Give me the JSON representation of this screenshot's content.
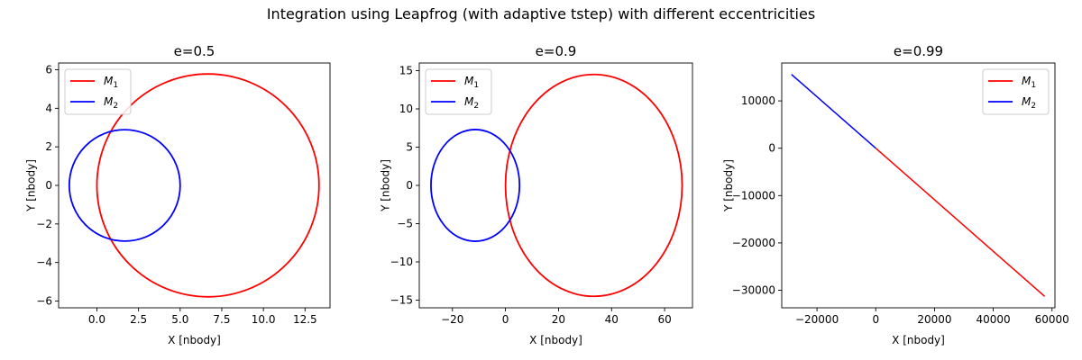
{
  "figure": {
    "title": "Integration using Leapfrog (with adaptive tstep) with different eccentricities"
  },
  "chart_data": [
    {
      "type": "line",
      "title": "e=0.5",
      "xlabel": "X [nbody]",
      "ylabel": "Y [nbody]",
      "xlim": [
        -2.3,
        14.0
      ],
      "ylim": [
        -6.35,
        6.35
      ],
      "xticks": [
        0.0,
        2.5,
        5.0,
        7.5,
        10.0,
        12.5
      ],
      "xtick_labels": [
        "0.0",
        "2.5",
        "5.0",
        "7.5",
        "10.0",
        "12.5"
      ],
      "yticks": [
        -6,
        -4,
        -2,
        0,
        2,
        4,
        6
      ],
      "ytick_labels": [
        "−6",
        "−4",
        "−2",
        "0",
        "2",
        "4",
        "6"
      ],
      "legend": {
        "position": "upper left",
        "entries": [
          "M1",
          "M2"
        ]
      },
      "series": [
        {
          "name": "M1",
          "color": "#ff0000",
          "shape": "ellipse",
          "center": [
            6.67,
            0.0
          ],
          "radii": [
            6.67,
            5.78
          ]
        },
        {
          "name": "M2",
          "color": "#0000ff",
          "shape": "ellipse",
          "center": [
            1.67,
            0.0
          ],
          "radii": [
            3.33,
            2.89
          ]
        }
      ]
    },
    {
      "type": "line",
      "title": "e=0.9",
      "xlabel": "X [nbody]",
      "ylabel": "Y [nbody]",
      "xlim": [
        -32.5,
        70.5
      ],
      "ylim": [
        -16.0,
        16.0
      ],
      "xticks": [
        -20,
        0,
        20,
        40,
        60
      ],
      "xtick_labels": [
        "−20",
        "0",
        "20",
        "40",
        "60"
      ],
      "yticks": [
        -15,
        -10,
        -5,
        0,
        5,
        10,
        15
      ],
      "ytick_labels": [
        "−15",
        "−10",
        "−5",
        "0",
        "5",
        "10",
        "15"
      ],
      "legend": {
        "position": "upper left",
        "entries": [
          "M1",
          "M2"
        ]
      },
      "series": [
        {
          "name": "M1",
          "color": "#ff0000",
          "shape": "ellipse",
          "center": [
            33.3,
            0.0
          ],
          "radii": [
            33.3,
            14.5
          ]
        },
        {
          "name": "M2",
          "color": "#0000ff",
          "shape": "ellipse",
          "center": [
            -11.4,
            0.0
          ],
          "radii": [
            16.7,
            7.3
          ]
        }
      ]
    },
    {
      "type": "line",
      "title": "e=0.99",
      "xlabel": "X [nbody]",
      "ylabel": "Y [nbody]",
      "xlim": [
        -32000,
        61000
      ],
      "ylim": [
        -33700,
        18000
      ],
      "xticks": [
        -20000,
        0,
        20000,
        40000,
        60000
      ],
      "xtick_labels": [
        "−20000",
        "0",
        "20000",
        "40000",
        "60000"
      ],
      "yticks": [
        -30000,
        -20000,
        -10000,
        0,
        10000
      ],
      "ytick_labels": [
        "−30000",
        "−20000",
        "−10000",
        "0",
        "10000"
      ],
      "legend": {
        "position": "upper right",
        "entries": [
          "M1",
          "M2"
        ]
      },
      "series": [
        {
          "name": "M1",
          "color": "#ff0000",
          "shape": "line",
          "x": [
            0,
            57500
          ],
          "y": [
            0,
            -31300
          ]
        },
        {
          "name": "M2",
          "color": "#0000ff",
          "shape": "line",
          "x": [
            -28700,
            0
          ],
          "y": [
            15600,
            0
          ]
        }
      ]
    }
  ]
}
